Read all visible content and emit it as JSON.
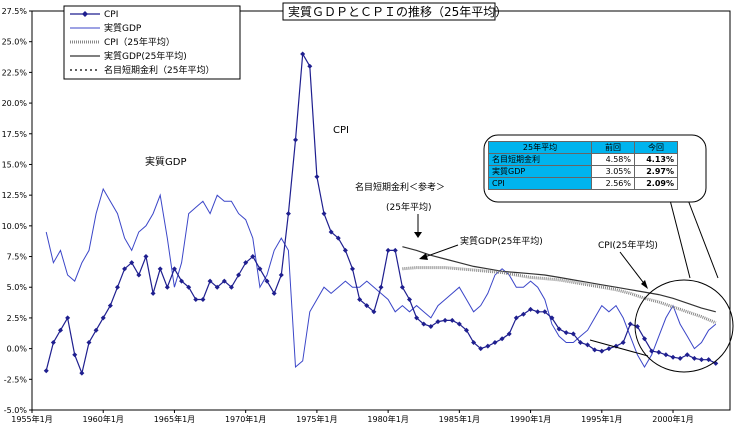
{
  "title": "実質ＧＤＰとＣＰＩの推移（25年平均）",
  "legend": [
    {
      "label": "CPI",
      "style": "diamond"
    },
    {
      "label": "実質GDP",
      "style": "thin"
    },
    {
      "label": "CPI（25年平均）",
      "style": "grey-dotted"
    },
    {
      "label": "実質GDP(25年平均)",
      "style": "black-solid"
    },
    {
      "label": "名目短期金利（25年平均）",
      "style": "black-dotted"
    }
  ],
  "annotations": {
    "gdp": "実質GDP",
    "cpi": "CPI",
    "rate_line1": "名目短期金利＜参考＞",
    "rate_line2": "(25年平均)",
    "gdp_avg": "実質GDP(25年平均)",
    "cpi_avg": "CPI(25年平均)"
  },
  "table": {
    "headers": [
      "25年平均",
      "前回",
      "今回"
    ],
    "rows": [
      {
        "label": "名目短期金利",
        "prev": "4.58%",
        "curr": "4.13%"
      },
      {
        "label": "実質GDP",
        "prev": "3.05%",
        "curr": "2.97%"
      },
      {
        "label": "CPI",
        "prev": "2.56%",
        "curr": "2.09%"
      }
    ]
  },
  "colors": {
    "cpi": "#1f1f8f",
    "gdp": "#3b46c8",
    "cpi_avg": "#888888",
    "gdp_avg": "#333333",
    "table_header": "#00b4ee"
  },
  "chart_data": {
    "type": "line",
    "title": "実質ＧＤＰとＣＰＩの推移（25年平均）",
    "x_ticks": [
      "1955年1月",
      "1960年1月",
      "1965年1月",
      "1970年1月",
      "1975年1月",
      "1980年1月",
      "1985年1月",
      "1990年1月",
      "1995年1月",
      "2000年1月"
    ],
    "y_ticks": [
      "27.5%",
      "25.0%",
      "22.5%",
      "20.0%",
      "17.5%",
      "15.0%",
      "12.5%",
      "10.0%",
      "7.5%",
      "5.0%",
      "2.5%",
      "0.0%",
      "-2.5%",
      "-5.0%"
    ],
    "xlim": [
      1955.0,
      2004.0
    ],
    "ylim": [
      -5.0,
      27.5
    ],
    "grid": false,
    "legend_position": "top-left",
    "series": [
      {
        "name": "CPI",
        "x": [
          1956.0,
          1956.5,
          1957.0,
          1957.5,
          1958.0,
          1958.5,
          1959.0,
          1959.5,
          1960.0,
          1960.5,
          1961.0,
          1961.5,
          1962.0,
          1962.5,
          1963.0,
          1963.5,
          1964.0,
          1964.5,
          1965.0,
          1965.5,
          1966.0,
          1966.5,
          1967.0,
          1967.5,
          1968.0,
          1968.5,
          1969.0,
          1969.5,
          1970.0,
          1970.5,
          1971.0,
          1971.5,
          1972.0,
          1972.5,
          1973.0,
          1973.5,
          1974.0,
          1974.5,
          1975.0,
          1975.5,
          1976.0,
          1976.5,
          1977.0,
          1977.5,
          1978.0,
          1978.5,
          1979.0,
          1979.5,
          1980.0,
          1980.5,
          1981.0,
          1981.5,
          1982.0,
          1982.5,
          1983.0,
          1983.5,
          1984.0,
          1984.5,
          1985.0,
          1985.5,
          1986.0,
          1986.5,
          1987.0,
          1987.5,
          1988.0,
          1988.5,
          1989.0,
          1989.5,
          1990.0,
          1990.5,
          1991.0,
          1991.5,
          1992.0,
          1992.5,
          1993.0,
          1993.5,
          1994.0,
          1994.5,
          1995.0,
          1995.5,
          1996.0,
          1996.5,
          1997.0,
          1997.5,
          1998.0,
          1998.5,
          1999.0,
          1999.5,
          2000.0,
          2000.5,
          2001.0,
          2001.5,
          2002.0,
          2002.5,
          2003.0
        ],
        "y": [
          -1.8,
          0.5,
          1.5,
          2.5,
          -0.5,
          -2.0,
          0.5,
          1.5,
          2.5,
          3.5,
          5.0,
          6.5,
          7.0,
          6.0,
          7.5,
          4.5,
          6.5,
          5.0,
          6.5,
          5.5,
          5.0,
          4.0,
          4.0,
          5.5,
          5.0,
          5.5,
          5.0,
          6.0,
          7.0,
          7.5,
          6.5,
          5.5,
          4.5,
          6.0,
          11.0,
          17.0,
          24.0,
          23.0,
          14.0,
          11.0,
          9.5,
          9.0,
          8.0,
          6.5,
          4.0,
          3.5,
          3.0,
          5.0,
          8.0,
          8.0,
          5.0,
          4.0,
          2.5,
          2.0,
          1.8,
          2.2,
          2.3,
          2.3,
          2.0,
          1.5,
          0.5,
          0.0,
          0.2,
          0.5,
          0.8,
          1.2,
          2.5,
          2.8,
          3.2,
          3.0,
          3.0,
          2.5,
          1.6,
          1.3,
          1.2,
          0.5,
          0.3,
          -0.1,
          -0.2,
          0.0,
          0.2,
          0.5,
          2.0,
          1.8,
          0.8,
          -0.2,
          -0.3,
          -0.5,
          -0.7,
          -0.8,
          -0.5,
          -0.8,
          -0.9,
          -0.9,
          -1.2
        ]
      },
      {
        "name": "実質GDP",
        "x": [
          1956.0,
          1956.5,
          1957.0,
          1957.5,
          1958.0,
          1958.5,
          1959.0,
          1959.5,
          1960.0,
          1960.5,
          1961.0,
          1961.5,
          1962.0,
          1962.5,
          1963.0,
          1963.5,
          1964.0,
          1964.5,
          1965.0,
          1965.5,
          1966.0,
          1966.5,
          1967.0,
          1967.5,
          1968.0,
          1968.5,
          1969.0,
          1969.5,
          1970.0,
          1970.5,
          1971.0,
          1971.5,
          1972.0,
          1972.5,
          1973.0,
          1973.5,
          1974.0,
          1974.5,
          1975.0,
          1975.5,
          1976.0,
          1976.5,
          1977.0,
          1977.5,
          1978.0,
          1978.5,
          1979.0,
          1979.5,
          1980.0,
          1980.5,
          1981.0,
          1981.5,
          1982.0,
          1982.5,
          1983.0,
          1983.5,
          1984.0,
          1984.5,
          1985.0,
          1985.5,
          1986.0,
          1986.5,
          1987.0,
          1987.5,
          1988.0,
          1988.5,
          1989.0,
          1989.5,
          1990.0,
          1990.5,
          1991.0,
          1991.5,
          1992.0,
          1992.5,
          1993.0,
          1993.5,
          1994.0,
          1994.5,
          1995.0,
          1995.5,
          1996.0,
          1996.5,
          1997.0,
          1997.5,
          1998.0,
          1998.5,
          1999.0,
          1999.5,
          2000.0,
          2000.5,
          2001.0,
          2001.5,
          2002.0,
          2002.5,
          2003.0
        ],
        "y": [
          9.5,
          7.0,
          8.0,
          6.0,
          5.5,
          7.0,
          8.0,
          11.0,
          13.0,
          12.0,
          11.0,
          9.0,
          8.0,
          9.5,
          10.0,
          11.0,
          12.5,
          9.0,
          5.0,
          7.0,
          11.0,
          11.5,
          12.0,
          11.0,
          12.5,
          12.0,
          12.0,
          11.0,
          10.5,
          9.0,
          5.0,
          6.0,
          8.0,
          9.0,
          8.0,
          -1.5,
          -1.0,
          3.0,
          4.0,
          5.0,
          4.5,
          5.0,
          5.5,
          5.0,
          5.0,
          5.5,
          5.0,
          4.5,
          4.0,
          3.0,
          3.5,
          3.0,
          3.5,
          3.0,
          2.5,
          3.5,
          4.0,
          4.5,
          5.0,
          4.0,
          3.0,
          3.5,
          4.5,
          6.0,
          6.5,
          6.0,
          5.0,
          5.0,
          5.5,
          5.0,
          4.0,
          2.0,
          1.0,
          0.5,
          0.5,
          1.0,
          1.5,
          2.5,
          3.5,
          3.0,
          3.5,
          2.5,
          1.0,
          -0.5,
          -1.5,
          -0.5,
          1.0,
          2.5,
          3.5,
          2.0,
          1.0,
          0.0,
          0.5,
          1.5,
          2.0
        ]
      },
      {
        "name": "CPI（25年平均）",
        "x": [
          1981.0,
          1982.0,
          1983.0,
          1984.0,
          1985.0,
          1986.0,
          1987.0,
          1988.0,
          1989.0,
          1990.0,
          1991.0,
          1992.0,
          1993.0,
          1994.0,
          1995.0,
          1996.0,
          1997.0,
          1998.0,
          1999.0,
          2000.0,
          2001.0,
          2002.0,
          2003.0
        ],
        "y": [
          6.5,
          6.6,
          6.6,
          6.6,
          6.5,
          6.4,
          6.3,
          6.2,
          6.0,
          5.8,
          5.7,
          5.6,
          5.4,
          5.2,
          5.0,
          4.8,
          4.5,
          4.1,
          3.8,
          3.4,
          3.0,
          2.6,
          2.1
        ]
      },
      {
        "name": "実質GDP(25年平均)",
        "x": [
          1981.0,
          1982.0,
          1983.0,
          1984.0,
          1985.0,
          1986.0,
          1987.0,
          1988.0,
          1989.0,
          1990.0,
          1991.0,
          1992.0,
          1993.0,
          1994.0,
          1995.0,
          1996.0,
          1997.0,
          1998.0,
          1999.0,
          2000.0,
          2001.0,
          2002.0,
          2003.0
        ],
        "y": [
          8.3,
          8.0,
          7.6,
          7.3,
          7.0,
          6.7,
          6.5,
          6.3,
          6.2,
          6.1,
          6.0,
          5.8,
          5.6,
          5.4,
          5.2,
          5.0,
          4.8,
          4.6,
          4.4,
          4.1,
          3.7,
          3.3,
          3.0
        ]
      },
      {
        "name": "名目短期金利（25年平均）",
        "x": [],
        "y": []
      }
    ]
  }
}
